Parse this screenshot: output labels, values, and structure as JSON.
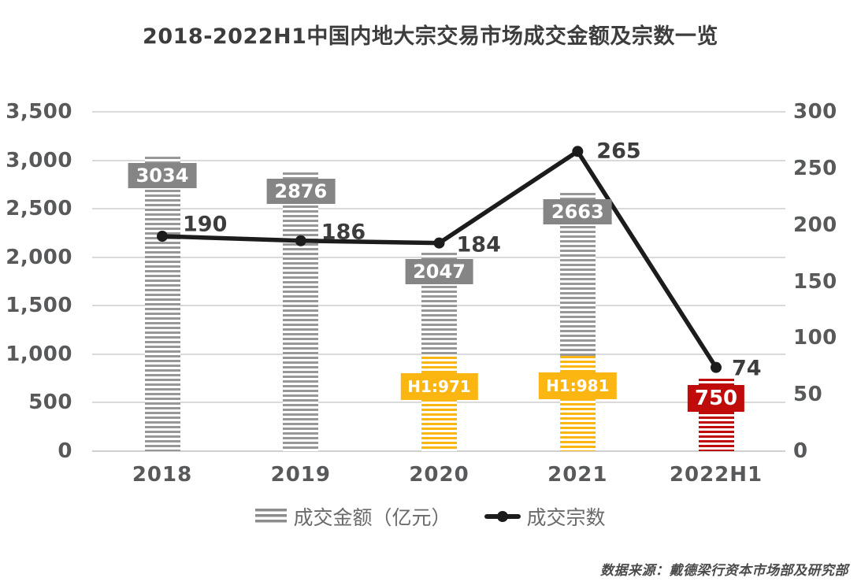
{
  "title": "2018-2022H1中国内地大宗交易市场成交金额及宗数一览",
  "source_note": "数据来源：戴德梁行资本市场部及研究部",
  "legend": {
    "bars_label": "成交金额（亿元）",
    "line_label": "成交宗数"
  },
  "colors": {
    "bar_gray": "#979797",
    "bar_yellow": "#fbb612",
    "bar_red": "#c00b0b",
    "label_gray_bg": "#858585",
    "line_black": "#1c1c1c",
    "axis_text": "#58595b",
    "gridline": "#dadada"
  },
  "chart_data": {
    "type": "combo",
    "categories": [
      "2018",
      "2019",
      "2020",
      "2021",
      "2022H1"
    ],
    "series": [
      {
        "name": "成交金额（亿元）",
        "type": "bar",
        "axis": "left",
        "values": [
          3034,
          2876,
          2047,
          2663,
          750
        ],
        "value_labels": [
          "3034",
          "2876",
          "2047",
          "2663",
          "750"
        ],
        "h1_values": [
          null,
          null,
          971,
          981,
          null
        ],
        "h1_labels": [
          null,
          null,
          "H1:971",
          "H1:981",
          null
        ],
        "bar_styles": [
          "gray",
          "gray",
          "gray-yellow",
          "gray-yellow",
          "red"
        ]
      },
      {
        "name": "成交宗数",
        "type": "line",
        "axis": "right",
        "values": [
          190,
          186,
          184,
          265,
          74
        ],
        "value_labels": [
          "190",
          "186",
          "184",
          "265",
          "74"
        ]
      }
    ],
    "left_axis": {
      "min": 0,
      "max": 3500,
      "step": 500,
      "tick_labels": [
        "0",
        "500",
        "1,000",
        "1,500",
        "2,000",
        "2,500",
        "3,000",
        "3,500"
      ]
    },
    "right_axis": {
      "min": 0,
      "max": 300,
      "step": 50,
      "tick_labels": [
        "0",
        "50",
        "100",
        "150",
        "200",
        "250",
        "300"
      ]
    },
    "grid": true,
    "legend_position": "bottom"
  }
}
